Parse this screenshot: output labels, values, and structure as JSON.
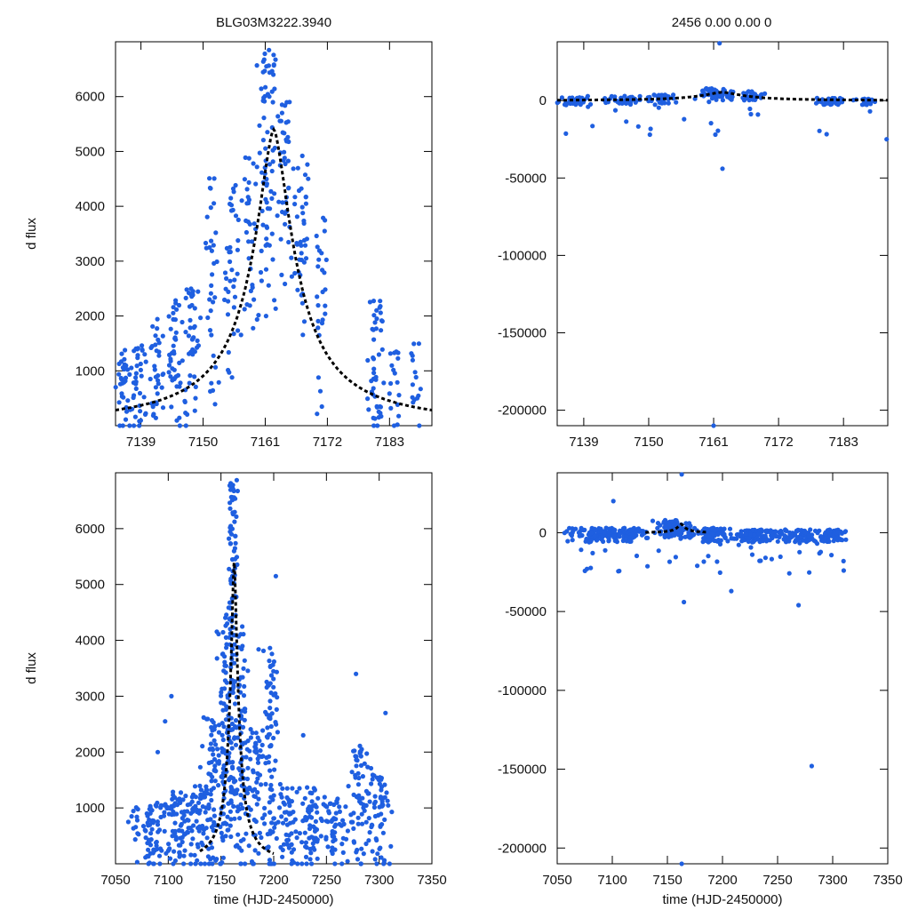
{
  "figure": {
    "title_left": "BLG03M3222.3940",
    "title_right": "2456  0.00  0.00  0",
    "colors": {
      "points": "#1f5fe0",
      "model": "#000000",
      "axes": "#000000"
    }
  },
  "chart_data": [
    {
      "id": "top-left",
      "type": "scatter",
      "title": "BLG03M3222.3940",
      "xlabel": "",
      "ylabel": "d flux",
      "xlim": [
        7134.5,
        7190.5
      ],
      "ylim": [
        0,
        7000
      ],
      "xticks": [
        7139,
        7150,
        7161,
        7172,
        7183
      ],
      "xtick_labels": [
        "7139",
        "7150",
        "7161",
        "7172",
        "7183"
      ],
      "yticks": [
        1000,
        2000,
        3000,
        4000,
        5000,
        6000
      ],
      "ytick_labels": [
        "1000",
        "2000",
        "3000",
        "4000",
        "5000",
        "6000"
      ],
      "model": {
        "type": "peak",
        "t0": 7162.5,
        "peak": 5400,
        "width": 4.6
      },
      "series": [
        {
          "name": "observations",
          "clusters": [
            {
              "x": 7136.0,
              "sx": 0.6,
              "ymin": 0,
              "ymax": 1400,
              "n": 30,
              "out": 2
            },
            {
              "x": 7138.5,
              "sx": 0.7,
              "ymin": 0,
              "ymax": 1500,
              "n": 35,
              "out": 3
            },
            {
              "x": 7141.5,
              "sx": 0.6,
              "ymin": 200,
              "ymax": 1950,
              "n": 32,
              "out": 2
            },
            {
              "x": 7145.0,
              "sx": 0.7,
              "ymin": 300,
              "ymax": 2300,
              "n": 40,
              "out": 3
            },
            {
              "x": 7148.0,
              "sx": 0.8,
              "ymin": 400,
              "ymax": 2500,
              "n": 38,
              "out": 4
            },
            {
              "x": 7151.5,
              "sx": 0.6,
              "ymin": 700,
              "ymax": 4600,
              "n": 30,
              "out": 3
            },
            {
              "x": 7155.0,
              "sx": 0.7,
              "ymin": 1200,
              "ymax": 4400,
              "n": 36,
              "out": 3
            },
            {
              "x": 7158.5,
              "sx": 0.6,
              "ymin": 2000,
              "ymax": 5000,
              "n": 28,
              "out": 2
            },
            {
              "x": 7161.5,
              "sx": 0.8,
              "ymin": 2500,
              "ymax": 6900,
              "n": 70,
              "out": 4
            },
            {
              "x": 7164.5,
              "sx": 0.7,
              "ymin": 3000,
              "ymax": 6100,
              "n": 40,
              "out": 3
            },
            {
              "x": 7167.5,
              "sx": 0.6,
              "ymin": 2200,
              "ymax": 5000,
              "n": 35,
              "out": 2
            },
            {
              "x": 7170.8,
              "sx": 0.5,
              "ymin": 600,
              "ymax": 3800,
              "n": 25,
              "out": 2
            },
            {
              "x": 7180.5,
              "sx": 0.7,
              "ymin": 0,
              "ymax": 2300,
              "n": 45,
              "out": 2
            },
            {
              "x": 7184.0,
              "sx": 0.6,
              "ymin": 0,
              "ymax": 1400,
              "n": 16,
              "out": 1
            },
            {
              "x": 7187.5,
              "sx": 0.5,
              "ymin": 0,
              "ymax": 1600,
              "n": 14,
              "out": 1
            }
          ]
        }
      ]
    },
    {
      "id": "top-right",
      "type": "scatter",
      "title": "2456  0.00  0.00  0",
      "xlabel": "",
      "ylabel": "",
      "xlim": [
        7134.5,
        7190.5
      ],
      "ylim": [
        -210000,
        38000
      ],
      "xticks": [
        7139,
        7150,
        7161,
        7172,
        7183
      ],
      "xtick_labels": [
        "7139",
        "7150",
        "7161",
        "7172",
        "7183"
      ],
      "yticks": [
        0,
        -50000,
        -100000,
        -150000,
        -200000
      ],
      "ytick_labels": [
        "0",
        "-50000",
        "-100000",
        "-150000",
        "-200000"
      ],
      "model": {
        "type": "peak",
        "t0": 7162.5,
        "peak": 5400,
        "width": 4.6
      },
      "series": [
        {
          "name": "observations",
          "clusters": [
            {
              "x": 7137.5,
              "sx": 1.5,
              "ymin": -3000,
              "ymax": 3000,
              "n": 40,
              "out": 3
            },
            {
              "x": 7146.0,
              "sx": 1.6,
              "ymin": -3000,
              "ymax": 3000,
              "n": 50,
              "out": 3
            },
            {
              "x": 7152.5,
              "sx": 1.0,
              "ymin": -2000,
              "ymax": 4000,
              "n": 30,
              "out": 2
            },
            {
              "x": 7161.5,
              "sx": 1.5,
              "ymin": 0,
              "ymax": 8000,
              "n": 60,
              "out": 3
            },
            {
              "x": 7167.5,
              "sx": 1.0,
              "ymin": 0,
              "ymax": 6000,
              "n": 30,
              "out": 2
            },
            {
              "x": 7181.0,
              "sx": 1.3,
              "ymin": -3000,
              "ymax": 2000,
              "n": 35,
              "out": 2
            },
            {
              "x": 7187.0,
              "sx": 0.8,
              "ymin": -3000,
              "ymax": 1500,
              "n": 20,
              "out": 1
            }
          ],
          "points": [
            {
              "x": 7162.0,
              "y": 37000
            },
            {
              "x": 7162.5,
              "y": -44000
            },
            {
              "x": 7161.3,
              "y": -22000
            },
            {
              "x": 7150.2,
              "y": -22000
            },
            {
              "x": 7161.0,
              "y": -210000
            },
            {
              "x": 7190.3,
              "y": -25000
            },
            {
              "x": 7156.0,
              "y": -12000
            },
            {
              "x": 7168.5,
              "y": -9000
            }
          ]
        }
      ]
    },
    {
      "id": "bottom-left",
      "type": "scatter",
      "title": "",
      "xlabel": "time (HJD-2450000)",
      "ylabel": "d flux",
      "xlim": [
        7050,
        7350
      ],
      "ylim": [
        0,
        7000
      ],
      "xticks": [
        7050,
        7100,
        7150,
        7200,
        7250,
        7300,
        7350
      ],
      "xtick_labels": [
        "7050",
        "7100",
        "7150",
        "7200",
        "7250",
        "7300",
        "7350"
      ],
      "yticks": [
        1000,
        2000,
        3000,
        4000,
        5000,
        6000
      ],
      "ytick_labels": [
        "1000",
        "2000",
        "3000",
        "4000",
        "5000",
        "6000"
      ],
      "model": {
        "type": "peak",
        "t0": 7162.5,
        "peak": 5400,
        "width": 4.6,
        "xrange": [
          7130,
          7200
        ]
      },
      "series": [
        {
          "name": "observations",
          "clusters": [
            {
              "x": 7085,
              "sx": 10,
              "ymin": 0,
              "ymax": 1100,
              "n": 80,
              "out": 4
            },
            {
              "x": 7112,
              "sx": 8,
              "ymin": 0,
              "ymax": 1300,
              "n": 70,
              "out": 3
            },
            {
              "x": 7130,
              "sx": 5,
              "ymin": 0,
              "ymax": 1400,
              "n": 50,
              "out": 2
            },
            {
              "x": 7143,
              "sx": 4,
              "ymin": 0,
              "ymax": 2700,
              "n": 70,
              "out": 3
            },
            {
              "x": 7153,
              "sx": 3,
              "ymin": 300,
              "ymax": 4500,
              "n": 80,
              "out": 3
            },
            {
              "x": 7161,
              "sx": 2,
              "ymin": 1000,
              "ymax": 6900,
              "n": 130,
              "out": 4
            },
            {
              "x": 7170,
              "sx": 3,
              "ymin": 200,
              "ymax": 4300,
              "n": 70,
              "out": 3
            },
            {
              "x": 7182,
              "sx": 4,
              "ymin": 0,
              "ymax": 2400,
              "n": 60,
              "out": 3
            },
            {
              "x": 7197,
              "sx": 4,
              "ymin": 0,
              "ymax": 3900,
              "n": 80,
              "out": 4
            },
            {
              "x": 7213,
              "sx": 6,
              "ymin": 0,
              "ymax": 1400,
              "n": 50,
              "out": 2
            },
            {
              "x": 7236,
              "sx": 6,
              "ymin": 0,
              "ymax": 1400,
              "n": 60,
              "out": 3
            },
            {
              "x": 7258,
              "sx": 6,
              "ymin": 0,
              "ymax": 1200,
              "n": 50,
              "out": 2
            },
            {
              "x": 7281,
              "sx": 5,
              "ymin": 0,
              "ymax": 2200,
              "n": 60,
              "out": 3
            },
            {
              "x": 7300,
              "sx": 5,
              "ymin": 0,
              "ymax": 1600,
              "n": 55,
              "out": 3
            }
          ],
          "points": [
            {
              "x": 7097,
              "y": 2550
            },
            {
              "x": 7103,
              "y": 3000
            },
            {
              "x": 7090,
              "y": 2000
            },
            {
              "x": 7202,
              "y": 5150
            },
            {
              "x": 7278,
              "y": 3400
            },
            {
              "x": 7306,
              "y": 2700
            },
            {
              "x": 7228,
              "y": 2300
            }
          ]
        }
      ]
    },
    {
      "id": "bottom-right",
      "type": "scatter",
      "title": "",
      "xlabel": "time (HJD-2450000)",
      "ylabel": "",
      "xlim": [
        7050,
        7350
      ],
      "ylim": [
        -210000,
        38000
      ],
      "xticks": [
        7050,
        7100,
        7150,
        7200,
        7250,
        7300,
        7350
      ],
      "xtick_labels": [
        "7050",
        "7100",
        "7150",
        "7200",
        "7250",
        "7300",
        "7350"
      ],
      "yticks": [
        0,
        -50000,
        -100000,
        -150000,
        -200000
      ],
      "ytick_labels": [
        "0",
        "-50000",
        "-100000",
        "-150000",
        "-200000"
      ],
      "model": {
        "type": "peak",
        "t0": 7162.5,
        "peak": 5400,
        "width": 4.6,
        "xrange": [
          7130,
          7185
        ]
      },
      "series": [
        {
          "name": "observations",
          "clusters": [
            {
              "x": 7085,
              "sx": 12,
              "ymin": -6000,
              "ymax": 3000,
              "n": 90,
              "out": 6
            },
            {
              "x": 7115,
              "sx": 10,
              "ymin": -6000,
              "ymax": 3000,
              "n": 70,
              "out": 4
            },
            {
              "x": 7155,
              "sx": 8,
              "ymin": -3000,
              "ymax": 8000,
              "n": 90,
              "out": 4
            },
            {
              "x": 7190,
              "sx": 10,
              "ymin": -6000,
              "ymax": 3000,
              "n": 90,
              "out": 6
            },
            {
              "x": 7230,
              "sx": 10,
              "ymin": -6000,
              "ymax": 2000,
              "n": 90,
              "out": 8
            },
            {
              "x": 7265,
              "sx": 10,
              "ymin": -6000,
              "ymax": 2000,
              "n": 80,
              "out": 5
            },
            {
              "x": 7298,
              "sx": 8,
              "ymin": -6000,
              "ymax": 2000,
              "n": 70,
              "out": 5
            }
          ],
          "points": [
            {
              "x": 7163,
              "y": 37000
            },
            {
              "x": 7101,
              "y": 20000
            },
            {
              "x": 7165,
              "y": -44000
            },
            {
              "x": 7269,
              "y": -46000
            },
            {
              "x": 7281,
              "y": -148000
            },
            {
              "x": 7163,
              "y": -210000
            },
            {
              "x": 7208,
              "y": -37000
            },
            {
              "x": 7077,
              "y": -23000
            },
            {
              "x": 7310,
              "y": -24000
            }
          ]
        }
      ]
    }
  ]
}
